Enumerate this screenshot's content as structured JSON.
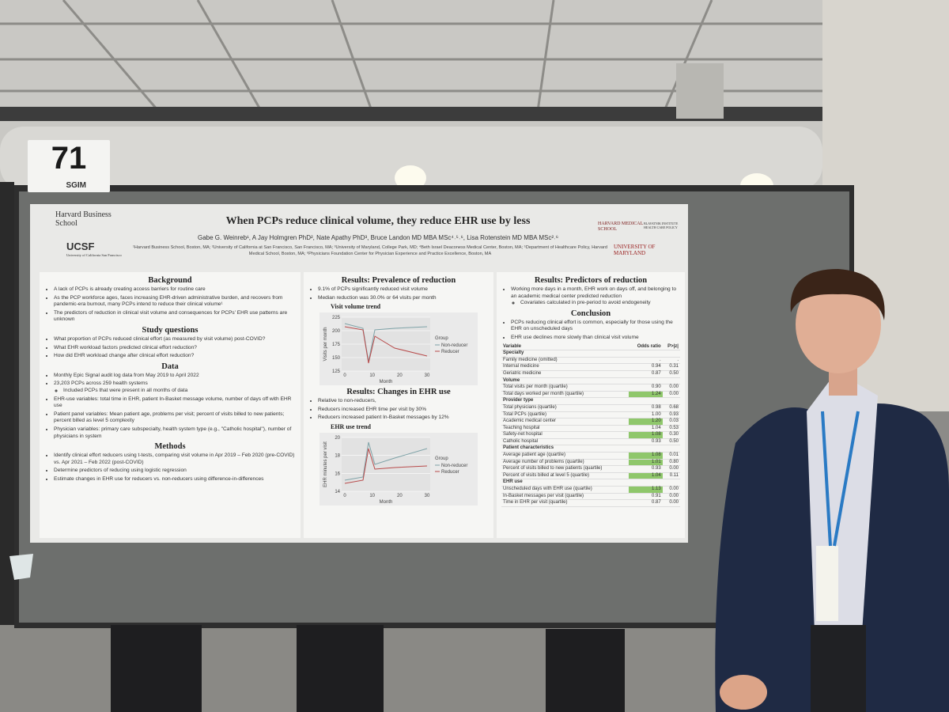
{
  "sign": {
    "number": "71",
    "org": "SGIM"
  },
  "poster": {
    "logos": {
      "hbs": "Harvard Business School",
      "ucsf": "UCSF",
      "ucsf_sub": "University of California San Francisco",
      "hms": "HARVARD MEDICAL SCHOOL",
      "blavatnik": "BLAVATNIK INSTITUTE HEALTH CARE POLICY",
      "umd": "UNIVERSITY OF MARYLAND"
    },
    "title": "When PCPs reduce clinical volume, they reduce EHR use by less",
    "authors": "Gabe G. Weinreb¹, A Jay Holmgren PhD², Nate Apathy PhD³, Bruce Landon MD MBA MSc⁴˒⁵˒⁶, Lisa Rotenstein MD MBA MSc²˒⁶",
    "affiliations": "¹Harvard Business School, Boston, MA; ²University of California at San Francisco, San Francisco, MA; ³University of Maryland, College Park, MD; ⁴Beth Israel Deaconess Medical Center, Boston, MA; ⁵Department of Healthcare Policy, Harvard Medical School, Boston, MA; ⁶Physicians Foundation Center for Physician Experience and Practice Excellence, Boston, MA",
    "columns": [
      [
        {
          "heading": "Background",
          "items": [
            {
              "text": "A lack of PCPs is already creating access barriers for routine care"
            },
            {
              "text": "As the PCP workforce ages, faces increasing EHR-driven administrative burden, and recovers from pandemic-era burnout, many PCPs intend to reduce their clinical volume¹"
            },
            {
              "text": "The predictors of reduction in clinical visit volume and consequences for PCPs' EHR use patterns are unknown"
            }
          ]
        },
        {
          "heading": "Study questions",
          "items": [
            {
              "text": "What proportion of PCPs reduced clinical effort (as measured by visit volume) post-COVID?"
            },
            {
              "text": "What EHR workload factors predicted clinical effort reduction?"
            },
            {
              "text": "How did EHR workload change after clinical effort reduction?"
            }
          ]
        },
        {
          "heading": "Data",
          "items": [
            {
              "text": "Monthly Epic Signal audit log data from May 2019 to April 2022"
            },
            {
              "text": "23,203 PCPs across 259 health systems",
              "sub": [
                "Included PCPs that were present in all months of data"
              ]
            },
            {
              "text": "EHR-use variables: total time in EHR, patient In-Basket message volume, number of days off with EHR use"
            },
            {
              "text": "Patient panel variables: Mean patient age, problems per visit; percent of visits billed to new patients; percent billed as level 5 complexity"
            },
            {
              "text": "Physician variables: primary care subspecialty, health system type (e.g., \"Catholic hospital\"), number of physicians in system"
            }
          ]
        },
        {
          "heading": "Methods",
          "items": [
            {
              "text": "Identify clinical effort reducers using t-tests, comparing visit volume in Apr 2019 – Feb 2020 (pre-COVID) vs. Apr 2021 – Feb 2022 (post-COVID)"
            },
            {
              "text": "Determine predictors of reducing using logistic regression"
            },
            {
              "text": "Estimate changes in EHR use for reducers vs. non-reducers using difference-in-differences"
            }
          ]
        }
      ],
      [
        {
          "heading": "Results: Prevalence of reduction",
          "items": [
            {
              "text": "9.1% of PCPs significantly reduced visit volume"
            },
            {
              "text": "Median reduction was 30.0% or 64 visits per month"
            }
          ],
          "chart": {
            "title": "Visit volume trend",
            "ylabel": "Visits per month",
            "xlabel": "Month",
            "yticks": [
              "225",
              "200",
              "175",
              "150",
              "125"
            ],
            "xticks": [
              "0",
              "10",
              "20",
              "30"
            ],
            "legend_title": "Group",
            "legend": [
              "Non-reducer",
              "Reducer"
            ]
          }
        },
        {
          "heading": "Results: Changes in EHR use",
          "items": [
            {
              "text": "Relative to non-reducers,"
            },
            {
              "text": "Reducers increased EHR time per visit by 30%"
            },
            {
              "text": "Reducers increased patient In-Basket messages by 12%"
            }
          ],
          "chart": {
            "title": "EHR use trend",
            "ylabel": "EHR minutes per visit",
            "xlabel": "Month",
            "yticks": [
              "20",
              "18",
              "16",
              "14"
            ],
            "xticks": [
              "0",
              "10",
              "20",
              "30"
            ],
            "legend_title": "Group",
            "legend": [
              "Non-reducer",
              "Reducer"
            ]
          }
        }
      ],
      [
        {
          "heading": "Results: Predictors of reduction",
          "items": [
            {
              "text": "Working more days in a month, EHR work on days off, and belonging to an academic medical center predicted reduction",
              "sub": [
                "Covariates calculated in pre-period to avoid endogeneity"
              ]
            }
          ]
        },
        {
          "heading": "Conclusion",
          "items": [
            {
              "text": "PCPs reducing clinical effort is common, especially for those using the EHR on unscheduled days"
            },
            {
              "text": "EHR use declines more slowly than clinical visit volume"
            }
          ],
          "table": {
            "header": [
              "Variable",
              "Odds ratio",
              "P>|z|"
            ],
            "rows": [
              {
                "cells": [
                  "Specialty"
                ]
              },
              {
                "cells": [
                  "Family medicine (omitted)",
                  ".",
                  "."
                ]
              },
              {
                "cells": [
                  "Internal medicine",
                  "0.94",
                  "0.31"
                ]
              },
              {
                "cells": [
                  "Geriatric medicine",
                  "0.87",
                  "0.50"
                ]
              },
              {
                "cells": [
                  "Volume"
                ]
              },
              {
                "cells": [
                  "Total visits per month (quartile)",
                  "0.90",
                  "0.00"
                ]
              },
              {
                "cells": [
                  "Total days worked per month (quartile)",
                  "1.24",
                  "0.00"
                ],
                "highlight": true
              },
              {
                "cells": [
                  "Provider type"
                ]
              },
              {
                "cells": [
                  "Total physicians (quartile)",
                  "0.98",
                  "0.68"
                ]
              },
              {
                "cells": [
                  "Total PCPs (quartile)",
                  "1.00",
                  "0.93"
                ]
              },
              {
                "cells": [
                  "Academic medical center",
                  "1.20",
                  "0.03"
                ],
                "highlight": true
              },
              {
                "cells": [
                  "Teaching hospital",
                  "1.04",
                  "0.53"
                ]
              },
              {
                "cells": [
                  "Safety-net hospital",
                  "1.08",
                  "0.30"
                ],
                "highlight": true
              },
              {
                "cells": [
                  "Catholic hospital",
                  "0.93",
                  "0.50"
                ]
              },
              {
                "cells": [
                  "Patient characteristics"
                ]
              },
              {
                "cells": [
                  "Average patient age (quartile)",
                  "1.08",
                  "0.01"
                ],
                "highlight": true
              },
              {
                "cells": [
                  "Average number of problems (quartile)",
                  "1.01",
                  "0.80"
                ],
                "highlight": true
              },
              {
                "cells": [
                  "Percent of visits billed to new patients (quartile)",
                  "0.93",
                  "0.00"
                ]
              },
              {
                "cells": [
                  "Percent of visits billed at level 5 (quartile)",
                  "1.04",
                  "0.11"
                ],
                "highlight": true
              },
              {
                "cells": [
                  "EHR use"
                ]
              },
              {
                "cells": [
                  "Unscheduled days with EHR use (quartile)",
                  "1.13",
                  "0.00"
                ],
                "highlight": true
              },
              {
                "cells": [
                  "In-Basket messages per visit (quartile)",
                  "0.91",
                  "0.00"
                ]
              },
              {
                "cells": [
                  "Time in EHR per visit (quartile)",
                  "0.87",
                  "0.00"
                ]
              }
            ]
          }
        }
      ]
    ]
  }
}
